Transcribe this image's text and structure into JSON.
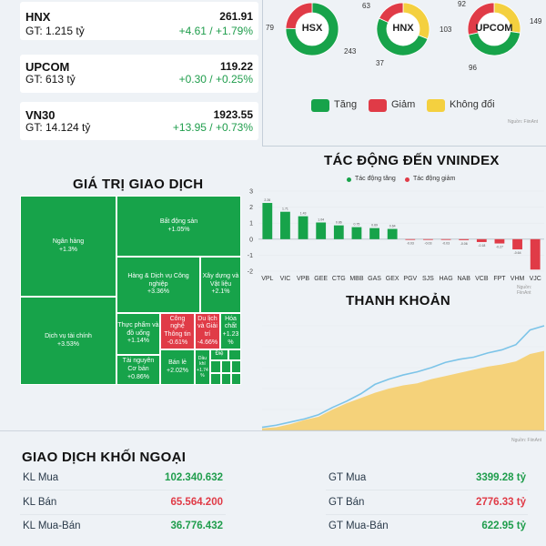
{
  "indices": [
    {
      "name": "HNX",
      "gt": "GT: 1.215 tỷ",
      "value": "261.91",
      "change": "+4.61 / +1.79%"
    },
    {
      "name": "UPCOM",
      "gt": "GT: 613 tỷ",
      "value": "119.22",
      "change": "+0.30 / +0.25%"
    },
    {
      "name": "VN30",
      "gt": "GT: 14.124 tỷ",
      "value": "1923.55",
      "change": "+13.95 / +0.73%"
    }
  ],
  "donuts": [
    {
      "name": "HSX",
      "up": 243,
      "down": 79,
      "flat": 0,
      "label_up": "243",
      "label_down": "79"
    },
    {
      "name": "HNX",
      "up": 103,
      "down": 37,
      "flat": 63,
      "label_up": "103",
      "label_down": "37",
      "label_flat": "63"
    },
    {
      "name": "UPCOM",
      "up": 149,
      "down": 96,
      "flat": 92,
      "label_up": "149",
      "label_down": "96",
      "label_flat": "92"
    }
  ],
  "legend": {
    "up": "Tăng",
    "down": "Giảm",
    "flat": "Không đổi",
    "source": "Nguồn: FiinAnt"
  },
  "colors": {
    "up": "#17a34a",
    "down": "#e03b47",
    "flat": "#f4d03f",
    "area": "#f5d27a",
    "line": "#7cc4e8"
  },
  "impact": {
    "title": "TÁC ĐỘNG ĐẾN VNINDEX",
    "legend_up": "Tác động tăng",
    "legend_down": "Tác động giảm",
    "source": "Nguồn: FiinAnt"
  },
  "chart_data": [
    {
      "type": "bar",
      "title": "TÁC ĐỘNG ĐẾN VNINDEX",
      "categories": [
        "VPL",
        "VIC",
        "VPB",
        "GEE",
        "CTG",
        "MBB",
        "GAS",
        "GEX",
        "PGV",
        "SJS",
        "HAG",
        "NAB",
        "VCB",
        "FPT",
        "VHM",
        "VJC"
      ],
      "values": [
        2.26,
        1.71,
        1.43,
        1.04,
        0.86,
        0.75,
        0.69,
        0.64,
        -0.03,
        -0.03,
        -0.03,
        -0.06,
        -0.18,
        -0.27,
        -0.64,
        -1.9
      ],
      "value_labels": [
        "2.26",
        "1.71",
        "1.43",
        "1.04",
        "0.86",
        "0.75",
        "0.69",
        "0.64",
        "-0.03",
        "-0.03",
        "-0.03",
        "-0.06",
        "-0.18",
        "-0.27",
        "-0.64",
        ""
      ],
      "ylim": [
        -2,
        3
      ],
      "yticks": [
        "3",
        "2",
        "1",
        "0",
        "-1",
        "-2"
      ],
      "grid": true
    },
    {
      "type": "area",
      "title": "THANH KHOẢN",
      "x": [
        0,
        5,
        10,
        15,
        20,
        25,
        30,
        35,
        40,
        45,
        50,
        55,
        60,
        65,
        70,
        75,
        80,
        85,
        90,
        95,
        100
      ],
      "series": [
        {
          "values": [
            2,
            3,
            6,
            10,
            13,
            20,
            26,
            31,
            36,
            40,
            43,
            45,
            49,
            52,
            55,
            58,
            61,
            63,
            66,
            73,
            76
          ]
        },
        {
          "values": [
            3,
            5,
            8,
            11,
            15,
            22,
            28,
            35,
            44,
            49,
            53,
            56,
            60,
            65,
            68,
            70,
            74,
            77,
            82,
            96,
            100
          ]
        }
      ]
    }
  ],
  "value_section": {
    "title": "GIÁ TRỊ GIAO DỊCH",
    "cells": [
      {
        "label": "Ngân hàng",
        "pct": "+1.3%",
        "color": "g"
      },
      {
        "label": "Bất động sản",
        "pct": "+1.05%",
        "color": "g"
      },
      {
        "label": "Dịch vụ tài chính",
        "pct": "+3.53%",
        "color": "g"
      },
      {
        "label": "Hàng & Dịch vụ Công nghiệp",
        "pct": "+3.36%",
        "color": "g"
      },
      {
        "label": "Xây dựng và Vật liệu",
        "pct": "+2.1%",
        "color": "g"
      },
      {
        "label": "Thực phẩm và đồ uống",
        "pct": "+1.14%",
        "color": "g"
      },
      {
        "label": "Công nghệ Thông tin",
        "pct": "-0.61%",
        "color": "r"
      },
      {
        "label": "Du lịch và Giải trí",
        "pct": "-4.66%",
        "color": "r"
      },
      {
        "label": "Hóa chất",
        "pct": "+1.23 %",
        "color": "g"
      },
      {
        "label": "Tài nguyên Cơ bản",
        "pct": "+0.86%",
        "color": "g"
      },
      {
        "label": "Bán lẻ",
        "pct": "+2.02%",
        "color": "g"
      },
      {
        "label": "Dầu khí",
        "pct": "+1.74 %",
        "color": "g"
      },
      {
        "label": "Điệ",
        "pct": "",
        "color": "g"
      }
    ]
  },
  "liquidity": {
    "title": "THANH KHOẢN",
    "source": "Nguồn: FiinAnt"
  },
  "foreign": {
    "title": "GIAO DỊCH KHỐI NGOẠI",
    "rows": [
      {
        "label_l": "KL Mua",
        "val_l": "102.340.632",
        "label_r": "GT Mua",
        "val_r": "3399.28 tỷ",
        "color": "#1f9d4c"
      },
      {
        "label_l": "KL Bán",
        "val_l": "65.564.200",
        "label_r": "GT Bán",
        "val_r": "2776.33 tỷ",
        "color": "#e03b47"
      },
      {
        "label_l": "KL Mua-Bán",
        "val_l": "36.776.432",
        "label_r": "GT Mua-Bán",
        "val_r": "622.95 tỷ",
        "color": "#1f9d4c"
      }
    ]
  }
}
